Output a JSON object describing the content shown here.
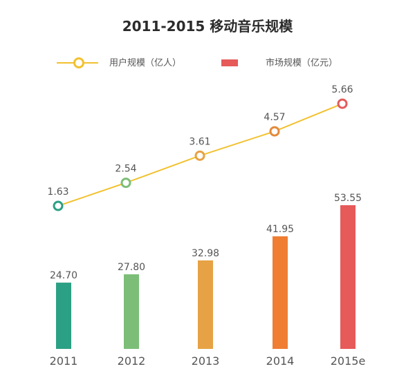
{
  "chart_data": {
    "type": "bar+line",
    "title": "2011-2015 移动音乐规模",
    "categories": [
      "2011",
      "2012",
      "2013",
      "2014",
      "2015e"
    ],
    "series": [
      {
        "name": "用户规模（亿人）",
        "type": "line",
        "values": [
          1.63,
          2.54,
          3.61,
          4.57,
          5.66
        ],
        "color": "#f2c12e"
      },
      {
        "name": "市场规模（亿元）",
        "type": "bar",
        "values": [
          24.7,
          27.8,
          32.98,
          41.95,
          53.55
        ],
        "color": "#e65a5a"
      }
    ],
    "bar_labels": [
      "24.70",
      "27.80",
      "32.98",
      "41.95",
      "53.55"
    ],
    "line_labels": [
      "1.63",
      "2.54",
      "3.61",
      "4.57",
      "5.66"
    ],
    "bar_colors": [
      "#2ba084",
      "#7cbe78",
      "#e6a244",
      "#ef7d32",
      "#e65a5a"
    ],
    "marker_colors": [
      "#2ba084",
      "#7cbe78",
      "#e6a244",
      "#e38a3a",
      "#e65a5a"
    ],
    "legend": {
      "position": "top",
      "items": [
        "用户规模（亿人）",
        "市场规模（亿元）"
      ]
    },
    "grid": false
  }
}
